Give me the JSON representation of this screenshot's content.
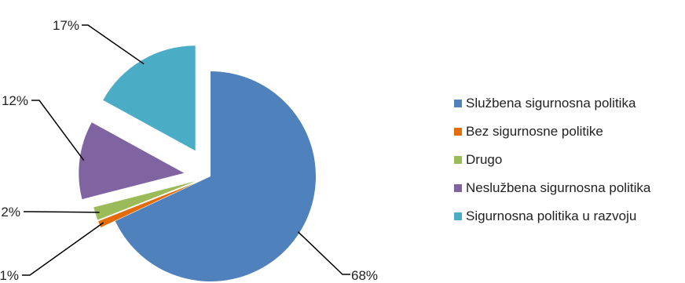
{
  "chart_data": {
    "type": "pie",
    "exploded": true,
    "legend_position": "right",
    "slices": [
      {
        "name": "Službena sigurnosna politika",
        "value": 68,
        "label": "68%",
        "color": "#4F81BD"
      },
      {
        "name": "Bez sigurnosne politike",
        "value": 1,
        "label": "1%",
        "color": "#E36C09"
      },
      {
        "name": "Drugo",
        "value": 2,
        "label": "2%",
        "color": "#9BBB59"
      },
      {
        "name": "Neslužbena sigurnosna politika",
        "value": 12,
        "label": "12%",
        "color": "#8064A2"
      },
      {
        "name": "Sigurnosna politika u razvoju",
        "value": 17,
        "label": "17%",
        "color": "#4BACC6"
      }
    ]
  }
}
